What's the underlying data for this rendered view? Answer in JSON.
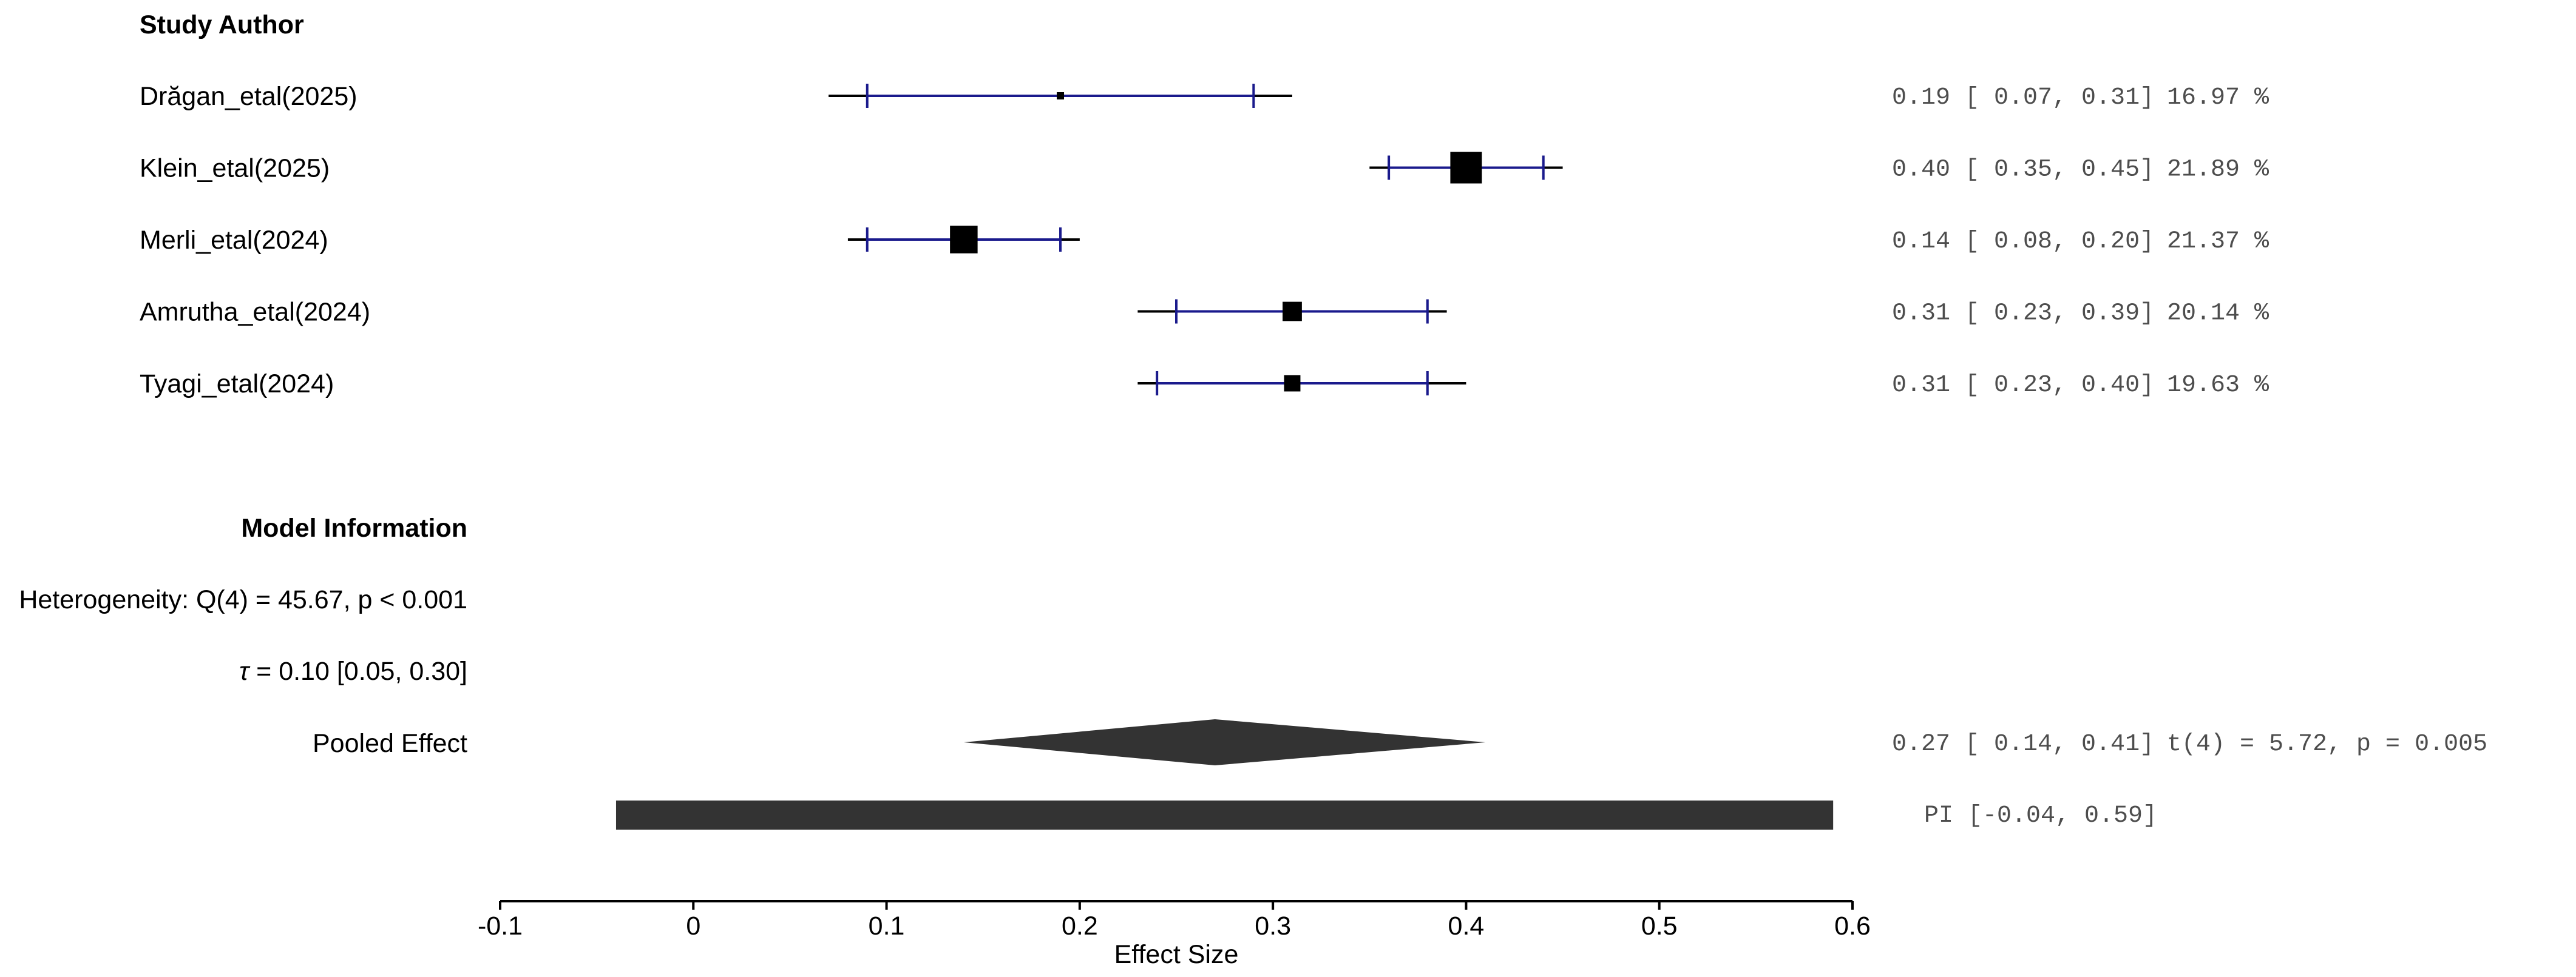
{
  "chart_data": {
    "type": "forest",
    "title": "",
    "xlabel": "Effect Size",
    "xlim": [
      -0.1,
      0.6
    ],
    "xticks": [
      -0.1,
      0,
      0.1,
      0.2,
      0.3,
      0.4,
      0.5,
      0.6
    ],
    "xtick_labels": [
      "-0.1",
      "0",
      "0.1",
      "0.2",
      "0.3",
      "0.4",
      "0.5",
      "0.6"
    ],
    "column_header": "Study Author",
    "studies": [
      {
        "label": "Drăgan_etal(2025)",
        "estimate": 0.19,
        "ci": [
          0.07,
          0.31
        ],
        "inner": [
          0.09,
          0.29
        ],
        "weight": 16.97,
        "stats": "0.19 [ 0.07, 0.31]",
        "weight_text": "16.97 %"
      },
      {
        "label": "Klein_etal(2025)",
        "estimate": 0.4,
        "ci": [
          0.35,
          0.45
        ],
        "inner": [
          0.36,
          0.44
        ],
        "weight": 21.89,
        "stats": "0.40 [ 0.35, 0.45]",
        "weight_text": "21.89 %"
      },
      {
        "label": "Merli_etal(2024)",
        "estimate": 0.14,
        "ci": [
          0.08,
          0.2
        ],
        "inner": [
          0.09,
          0.19
        ],
        "weight": 21.37,
        "stats": "0.14 [ 0.08, 0.20]",
        "weight_text": "21.37 %"
      },
      {
        "label": "Amrutha_etal(2024)",
        "estimate": 0.31,
        "ci": [
          0.23,
          0.39
        ],
        "inner": [
          0.25,
          0.38
        ],
        "weight": 20.14,
        "stats": "0.31 [ 0.23, 0.39]",
        "weight_text": "20.14 %"
      },
      {
        "label": "Tyagi_etal(2024)",
        "estimate": 0.31,
        "ci": [
          0.23,
          0.4
        ],
        "inner": [
          0.24,
          0.38
        ],
        "weight": 19.63,
        "stats": "0.31 [ 0.23, 0.40]",
        "weight_text": "19.63 %"
      }
    ],
    "model_info": {
      "header": "Model Information",
      "heterogeneity": "Heterogeneity: Q(4) = 45.67, p < 0.001",
      "tau_symbol": "τ",
      "tau_text": " = 0.10 [0.05, 0.30]",
      "pooled_label": "Pooled Effect",
      "pooled": {
        "estimate": 0.27,
        "ci": [
          0.14,
          0.41
        ],
        "stats": "0.27 [ 0.14, 0.41]",
        "test": "t(4) = 5.72, p = 0.005"
      },
      "prediction_interval": {
        "ci": [
          -0.04,
          0.59
        ],
        "text": "PI [-0.04, 0.59]"
      }
    },
    "colors": {
      "ci_line": "#000000",
      "inner_line": "#1a1a8c",
      "marker": "#000000",
      "pooled": "#333333",
      "stats_text": "#4d4d4d"
    }
  }
}
